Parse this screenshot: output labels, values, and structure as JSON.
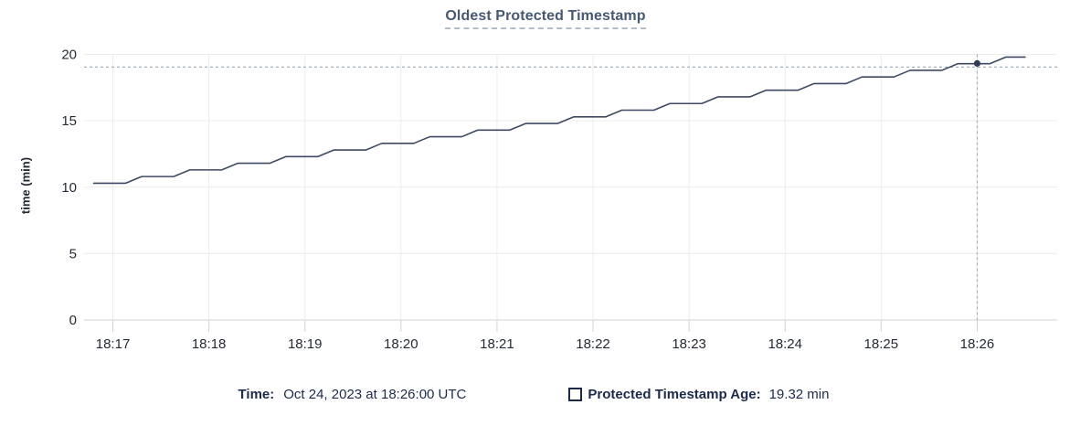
{
  "header": {
    "title": "Oldest Protected Timestamp"
  },
  "colors": {
    "title": "#475872",
    "title_underline": "#b3bcc9",
    "grid": "#ececec",
    "axis": "#d0d3d6",
    "tick": "#cfd2d6",
    "tick_text": "#242a35",
    "line": "#3e4a63",
    "dot": "#2f3d57",
    "crosshair": "#a2b1bc",
    "legend_text": "#1c2b49"
  },
  "chart_data": {
    "type": "line",
    "title": "Oldest Protected Timestamp",
    "xlabel": "",
    "ylabel": "time (min)",
    "ylim": [
      0,
      20
    ],
    "y_ticks": [
      0,
      5,
      10,
      15,
      20
    ],
    "x_range": [
      "18:16:42",
      "18:26:50"
    ],
    "x_ticks": [
      "18:17",
      "18:18",
      "18:19",
      "18:20",
      "18:21",
      "18:22",
      "18:23",
      "18:24",
      "18:25",
      "18:26"
    ],
    "grid": true,
    "legend_position": "bottom",
    "series": [
      {
        "name": "Protected Timestamp Age",
        "unit": "min",
        "points": [
          [
            "18:16:48",
            10.3
          ],
          [
            "18:17:08",
            10.3
          ],
          [
            "18:17:18",
            10.8
          ],
          [
            "18:17:38",
            10.8
          ],
          [
            "18:17:48",
            11.3
          ],
          [
            "18:18:08",
            11.3
          ],
          [
            "18:18:18",
            11.8
          ],
          [
            "18:18:38",
            11.8
          ],
          [
            "18:18:48",
            12.3
          ],
          [
            "18:19:08",
            12.3
          ],
          [
            "18:19:18",
            12.8
          ],
          [
            "18:19:38",
            12.8
          ],
          [
            "18:19:48",
            13.3
          ],
          [
            "18:20:08",
            13.3
          ],
          [
            "18:20:18",
            13.8
          ],
          [
            "18:20:38",
            13.8
          ],
          [
            "18:20:48",
            14.3
          ],
          [
            "18:21:08",
            14.3
          ],
          [
            "18:21:18",
            14.8
          ],
          [
            "18:21:38",
            14.8
          ],
          [
            "18:21:48",
            15.3
          ],
          [
            "18:22:08",
            15.3
          ],
          [
            "18:22:18",
            15.8
          ],
          [
            "18:22:38",
            15.8
          ],
          [
            "18:22:48",
            16.3
          ],
          [
            "18:23:08",
            16.3
          ],
          [
            "18:23:18",
            16.8
          ],
          [
            "18:23:38",
            16.8
          ],
          [
            "18:23:48",
            17.3
          ],
          [
            "18:24:08",
            17.3
          ],
          [
            "18:24:18",
            17.8
          ],
          [
            "18:24:38",
            17.8
          ],
          [
            "18:24:48",
            18.3
          ],
          [
            "18:25:08",
            18.3
          ],
          [
            "18:25:18",
            18.8
          ],
          [
            "18:25:38",
            18.8
          ],
          [
            "18:25:48",
            19.3
          ],
          [
            "18:26:08",
            19.3
          ],
          [
            "18:26:18",
            19.8
          ],
          [
            "18:26:30",
            19.8
          ]
        ]
      }
    ],
    "crosshair": {
      "x": "18:26:00",
      "y": 19.32
    }
  },
  "legend": {
    "time_label": "Time:",
    "time_value": "Oct 24, 2023 at 18:26:00 UTC",
    "series_label": "Protected Timestamp Age:",
    "series_value": "19.32 min"
  }
}
